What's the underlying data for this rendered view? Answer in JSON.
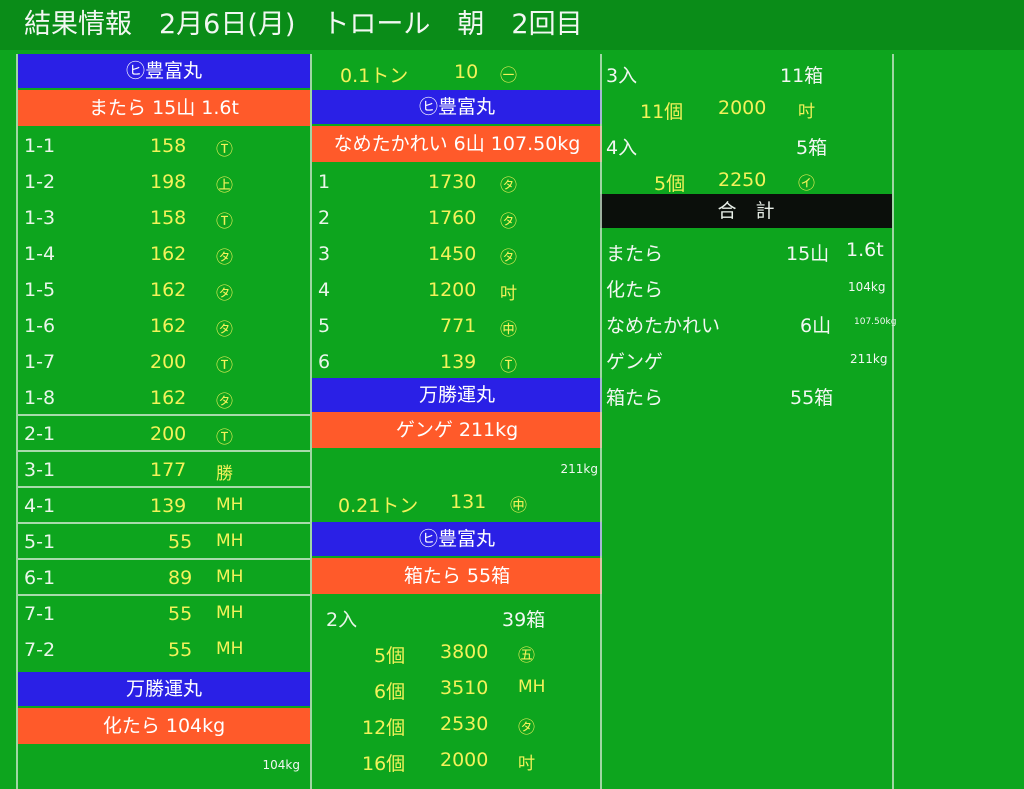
{
  "title": "結果情報　2月6日(月)　トロール　朝　2回目",
  "col1": {
    "ship1": "㋪豊富丸",
    "item1": "またら 15山 1.6t",
    "rows": [
      {
        "id": "1-1",
        "val": "158",
        "mark": "Ⓣ"
      },
      {
        "id": "1-2",
        "val": "198",
        "mark": "㊤"
      },
      {
        "id": "1-3",
        "val": "158",
        "mark": "Ⓣ"
      },
      {
        "id": "1-4",
        "val": "162",
        "mark": "㋟"
      },
      {
        "id": "1-5",
        "val": "162",
        "mark": "㋟"
      },
      {
        "id": "1-6",
        "val": "162",
        "mark": "㋟"
      },
      {
        "id": "1-7",
        "val": "200",
        "mark": "Ⓣ"
      },
      {
        "id": "1-8",
        "val": "162",
        "mark": "㋟"
      },
      {
        "id": "2-1",
        "val": "200",
        "mark": "Ⓣ"
      },
      {
        "id": "3-1",
        "val": "177",
        "mark": "勝"
      },
      {
        "id": "4-1",
        "val": "139",
        "mark": "MH"
      },
      {
        "id": "5-1",
        "val": "55",
        "mark": "MH"
      },
      {
        "id": "6-1",
        "val": "89",
        "mark": "MH"
      },
      {
        "id": "7-1",
        "val": "55",
        "mark": "MH"
      },
      {
        "id": "7-2",
        "val": "55",
        "mark": "MH"
      }
    ],
    "ship2": "万勝運丸",
    "item2": "化たら 104kg",
    "total2": "104kg"
  },
  "col2": {
    "top": {
      "qty": "0.1トン",
      "val": "10",
      "mark": "㊀"
    },
    "ship1": "㋪豊富丸",
    "item1": "なめたかれい 6山 107.50kg",
    "rows1": [
      {
        "id": "1",
        "val": "1730",
        "mark": "㋟"
      },
      {
        "id": "2",
        "val": "1760",
        "mark": "㋟"
      },
      {
        "id": "3",
        "val": "1450",
        "mark": "㋟"
      },
      {
        "id": "4",
        "val": "1200",
        "mark": "吋"
      },
      {
        "id": "5",
        "val": "771",
        "mark": "㊥"
      },
      {
        "id": "6",
        "val": "139",
        "mark": "Ⓣ"
      }
    ],
    "ship2": "万勝運丸",
    "item2": "ゲンゲ 211kg",
    "total2": "211kg",
    "row2": {
      "qty": "0.21トン",
      "val": "131",
      "mark": "㊥"
    },
    "ship3": "㋪豊富丸",
    "item3": "箱たら 55箱",
    "iri": {
      "label": "2入",
      "count": "39箱"
    },
    "rows3": [
      {
        "pcs": "5個",
        "val": "3800",
        "mark": "㊄"
      },
      {
        "pcs": "6個",
        "val": "3510",
        "mark": "MH"
      },
      {
        "pcs": "12個",
        "val": "2530",
        "mark": "㋟"
      },
      {
        "pcs": "16個",
        "val": "2000",
        "mark": "吋"
      }
    ]
  },
  "col3": {
    "iri3": {
      "label": "3入",
      "count": "11箱"
    },
    "row3": {
      "pcs": "11個",
      "val": "2000",
      "mark": "吋"
    },
    "iri4": {
      "label": "4入",
      "count": "5箱"
    },
    "row4": {
      "pcs": "5個",
      "val": "2250",
      "mark": "㋑"
    },
    "total_header": "合　計",
    "totals": [
      {
        "name": "またら",
        "count": "15山",
        "amount": "1.6t"
      },
      {
        "name": "化たら",
        "count": "",
        "amount": "104kg"
      },
      {
        "name": "なめたかれい",
        "count": "6山",
        "amount": "107.50kg"
      },
      {
        "name": "ゲンゲ",
        "count": "",
        "amount": "211kg"
      },
      {
        "name": "箱たら",
        "count": "55箱",
        "amount": ""
      }
    ]
  }
}
